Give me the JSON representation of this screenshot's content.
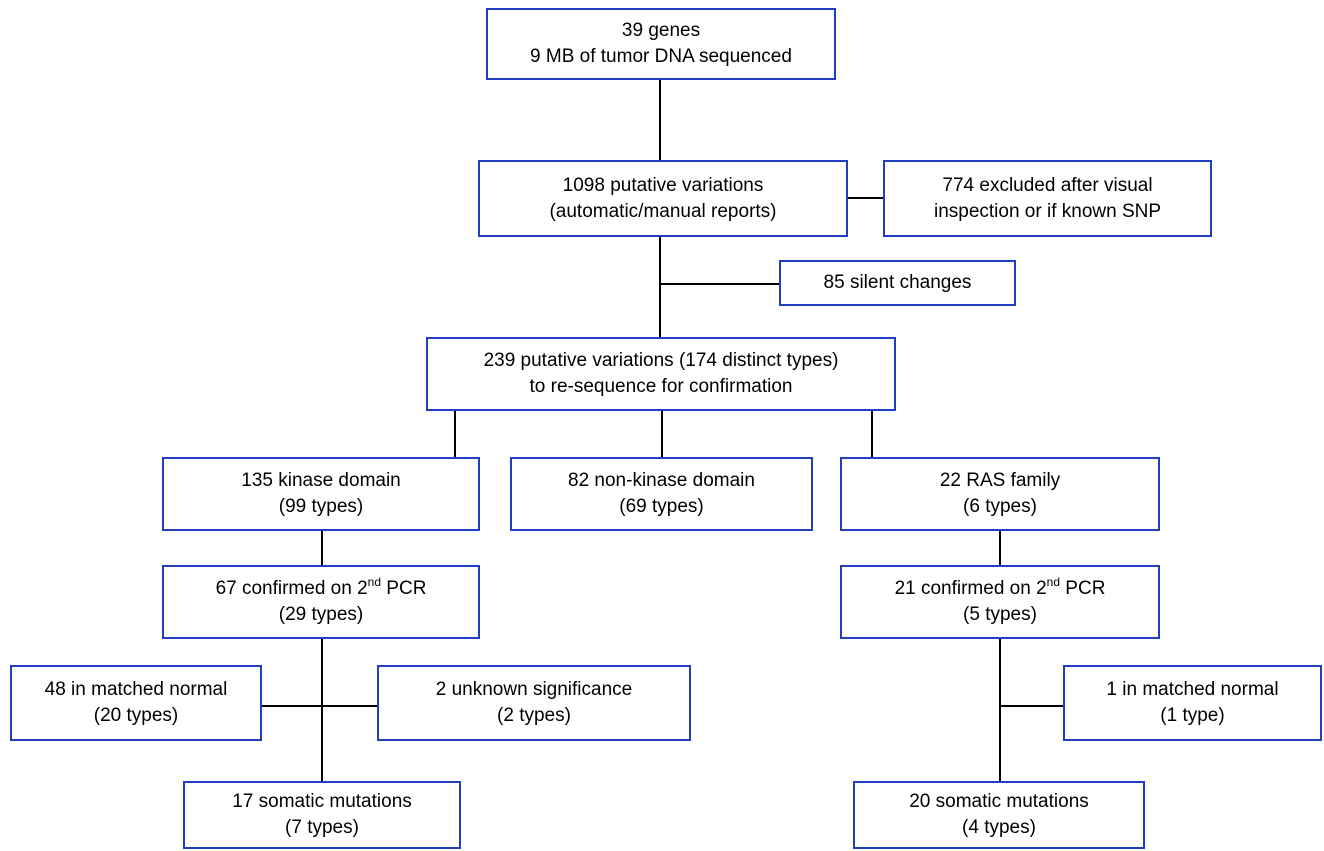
{
  "theme": {
    "box_border": "#1f3fbf",
    "connector": "#000000",
    "text": "#000000",
    "background": "#ffffff"
  },
  "nodes": {
    "genes": {
      "line1": "39 genes",
      "line2": "9 MB of tumor DNA sequenced"
    },
    "putative": {
      "line1": "1098 putative variations",
      "line2": "(automatic/manual reports)"
    },
    "excluded": {
      "line1": "774 excluded after visual",
      "line2": "inspection or if known SNP"
    },
    "silent": {
      "line1": "85 silent changes"
    },
    "resequence": {
      "line1": "239 putative variations (174 distinct types)",
      "line2": "to re-sequence for confirmation"
    },
    "kinase": {
      "line1": "135 kinase domain",
      "line2": "(99 types)"
    },
    "nonkinase": {
      "line1": "82 non-kinase domain",
      "line2": "(69 types)"
    },
    "ras": {
      "line1": "22 RAS family",
      "line2": "(6 types)"
    },
    "kinase_pcr": {
      "line1_a": "67 confirmed on 2",
      "line1_sup": "nd",
      "line1_b": " PCR",
      "line2": "(29 types)"
    },
    "ras_pcr": {
      "line1_a": "21 confirmed on 2",
      "line1_sup": "nd",
      "line1_b": " PCR",
      "line2": "(5 types)"
    },
    "matched_normal_k": {
      "line1": "48 in matched normal",
      "line2": "(20 types)"
    },
    "unknown": {
      "line1": "2 unknown significance",
      "line2": "(2 types)"
    },
    "matched_normal_r": {
      "line1": "1 in matched normal",
      "line2": "(1 type)"
    },
    "somatic_k": {
      "line1": "17 somatic mutations",
      "line2": "(7 types)"
    },
    "somatic_r": {
      "line1": "20 somatic mutations",
      "line2": "(4 types)"
    }
  }
}
